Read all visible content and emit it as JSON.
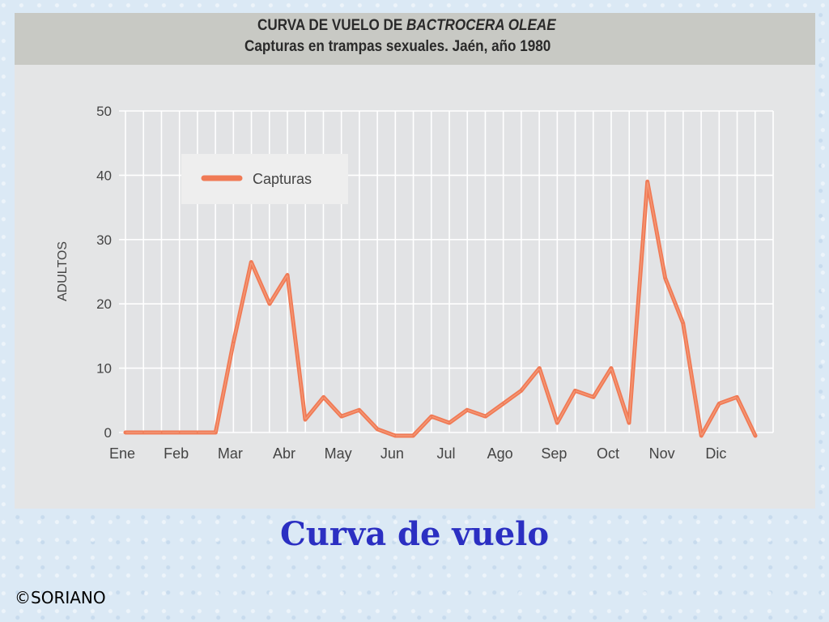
{
  "slide": {
    "caption": "Curva de vuelo",
    "credit": "©SORIANO"
  },
  "chart_data": {
    "type": "line",
    "title_prefix": "CURVA DE VUELO DE ",
    "title_species": "BACTROCERA OLEAE",
    "subtitle": "Capturas en trampas sexuales. Jaén, año 1980",
    "ylabel": "ADULTOS",
    "xlabel": "",
    "ylim": [
      0,
      50
    ],
    "yticks": [
      0,
      10,
      20,
      30,
      40,
      50
    ],
    "grid": true,
    "legend_position": "top-left",
    "month_labels": [
      "Ene",
      "Feb",
      "Mar",
      "Abr",
      "May",
      "Jun",
      "Jul",
      "Ago",
      "Sep",
      "Oct",
      "Nov",
      "Dic"
    ],
    "x_unit": "month index (0 = Ene)",
    "series": [
      {
        "name": "Capturas",
        "color": "#f07a55",
        "points": [
          [
            0.0,
            0
          ],
          [
            0.33,
            0
          ],
          [
            0.67,
            0
          ],
          [
            1.0,
            0
          ],
          [
            1.33,
            0
          ],
          [
            1.67,
            0
          ],
          [
            2.0,
            14
          ],
          [
            2.33,
            26.5
          ],
          [
            2.67,
            20
          ],
          [
            3.0,
            24.5
          ],
          [
            3.33,
            2
          ],
          [
            3.67,
            5.5
          ],
          [
            4.0,
            2.5
          ],
          [
            4.33,
            3.5
          ],
          [
            4.67,
            0.5
          ],
          [
            5.0,
            -0.5
          ],
          [
            5.33,
            -0.5
          ],
          [
            5.67,
            2.5
          ],
          [
            6.0,
            1.5
          ],
          [
            6.33,
            3.5
          ],
          [
            6.67,
            2.5
          ],
          [
            7.0,
            4.5
          ],
          [
            7.33,
            6.5
          ],
          [
            7.67,
            10
          ],
          [
            8.0,
            1.5
          ],
          [
            8.33,
            6.5
          ],
          [
            8.67,
            5.5
          ],
          [
            9.0,
            10
          ],
          [
            9.33,
            1.5
          ],
          [
            9.67,
            39
          ],
          [
            10.0,
            24
          ],
          [
            10.33,
            17
          ],
          [
            10.67,
            -0.5
          ],
          [
            11.0,
            4.5
          ],
          [
            11.33,
            5.5
          ],
          [
            11.67,
            -0.5
          ]
        ]
      }
    ]
  }
}
